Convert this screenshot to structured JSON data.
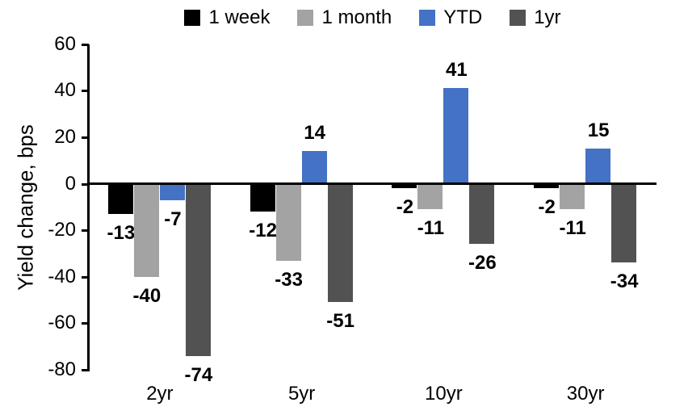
{
  "chart_data": {
    "type": "bar",
    "title": "",
    "ylabel": "Yield change, bps",
    "xlabel": "",
    "categories": [
      "2yr",
      "5yr",
      "10yr",
      "30yr"
    ],
    "series": [
      {
        "name": "1 week",
        "color": "#000000",
        "values": [
          -13,
          -12,
          -2,
          -2
        ]
      },
      {
        "name": "1 month",
        "color": "#A3A3A3",
        "values": [
          -40,
          -33,
          -11,
          -11
        ]
      },
      {
        "name": "YTD",
        "color": "#4472C4",
        "values": [
          -7,
          14,
          41,
          15
        ]
      },
      {
        "name": "1yr",
        "color": "#525252",
        "values": [
          -74,
          -51,
          -26,
          -34
        ]
      }
    ],
    "ylim": [
      -80,
      60
    ],
    "yticks": [
      60,
      40,
      20,
      0,
      -20,
      -40,
      -60,
      -80
    ],
    "grid": false,
    "legend_position": "top",
    "axis_color": "#000000",
    "label_color": "#000000",
    "background_color": "#FFFFFF"
  }
}
